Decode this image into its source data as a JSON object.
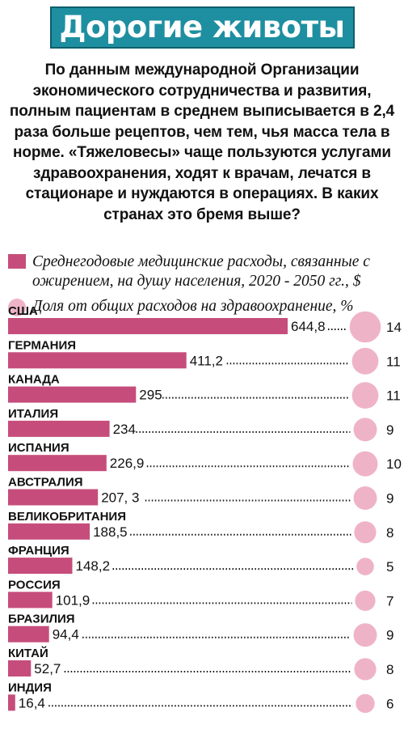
{
  "title": "Дорогие животы",
  "intro": "По данным международной Организации экономического сотрудничества и развития, полным пациентам в среднем выписывается в 2,4 раза больше рецептов, чем тем, чья масса тела в норме. «Тяжеловесы» чаще пользуются услугами здравоохранения, ходят к врачам, лечатся в стационаре и нуждаются в операциях. В каких странах это бремя выше?",
  "colors": {
    "title_bg": "#1e8fa0",
    "bar": "#c64d7b",
    "circle": "#efb3c7"
  },
  "chart_data": {
    "type": "bar",
    "orientation": "horizontal",
    "categories": [
      "США",
      "ГЕРМАНИЯ",
      "КАНАДА",
      "ИТАЛИЯ",
      "ИСПАНИЯ",
      "АВСТРАЛИЯ",
      "ВЕЛИКОБРИТАНИЯ",
      "ФРАНЦИЯ",
      "РОССИЯ",
      "БРАЗИЛИЯ",
      "КИТАЙ",
      "ИНДИЯ"
    ],
    "series": [
      {
        "name": "Среднегодовые медицинские расходы, связанные с ожирением, на душу населения, 2020 - 2050 гг., $",
        "values": [
          644.8,
          411.2,
          295,
          234,
          226.9,
          207.3,
          188.5,
          148.2,
          101.9,
          94.4,
          52.7,
          16.4
        ],
        "labels": [
          "644,8",
          "411,2",
          "295",
          "234",
          "226,9",
          "207, 3",
          "188,5",
          "148,2",
          "101,9",
          "94,4",
          "52,7",
          "16,4"
        ]
      },
      {
        "name": "Доля от общих расходов на здравоохранение, %",
        "values": [
          14,
          11,
          11,
          9,
          10,
          9,
          8,
          5,
          7,
          9,
          8,
          6
        ],
        "labels": [
          "14",
          "11",
          "11",
          "9",
          "10",
          "9",
          "8",
          "5",
          "7",
          "9",
          "8",
          "6"
        ]
      }
    ]
  }
}
